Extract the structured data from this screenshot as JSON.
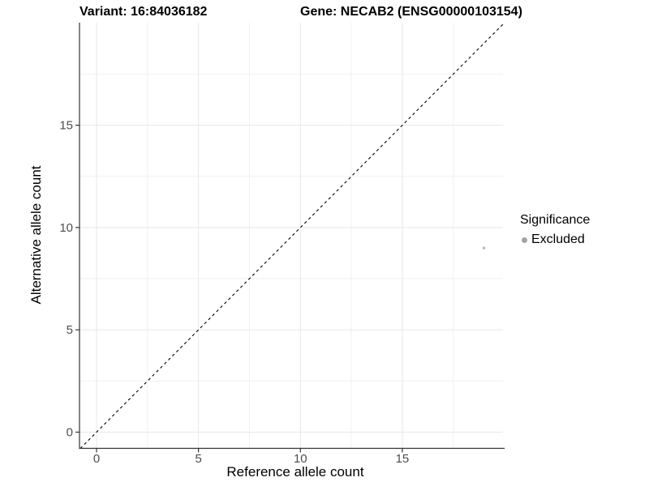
{
  "page": {
    "background": "#ffffff"
  },
  "chart_data": {
    "type": "scatter",
    "title_left": "Variant: 16:84036182",
    "title_right": "Gene: NECAB2 (ENSG00000103154)",
    "xlabel": "Reference allele count",
    "ylabel": "Alternative allele count",
    "xlim": [
      -0.85,
      19.95
    ],
    "ylim": [
      -0.8,
      20.0
    ],
    "x_major_ticks": [
      0,
      5,
      10,
      15
    ],
    "y_major_ticks": [
      0,
      5,
      10,
      15
    ],
    "x_minor_ticks": [
      2.5,
      7.5,
      12.5,
      17.5
    ],
    "y_minor_ticks": [
      2.5,
      7.5,
      12.5,
      17.5
    ],
    "grid": true,
    "points": [
      {
        "x": 19,
        "y": 9,
        "series": "Excluded"
      }
    ],
    "reference_line": {
      "type": "identity",
      "style": "dashed",
      "from": [
        -0.8,
        -0.8
      ],
      "to": [
        20,
        20
      ]
    },
    "legend": {
      "title": "Significance",
      "position": "right",
      "items": [
        {
          "label": "Excluded",
          "color": "#a3a3a3"
        }
      ]
    },
    "colors": {
      "point": "#bdbdbd",
      "grid_major": "#e7e7e7",
      "grid_minor": "#f1f1f1",
      "axis_line": "#333333",
      "tick_text": "#4d4d4d",
      "dashed_line": "#000000"
    }
  }
}
